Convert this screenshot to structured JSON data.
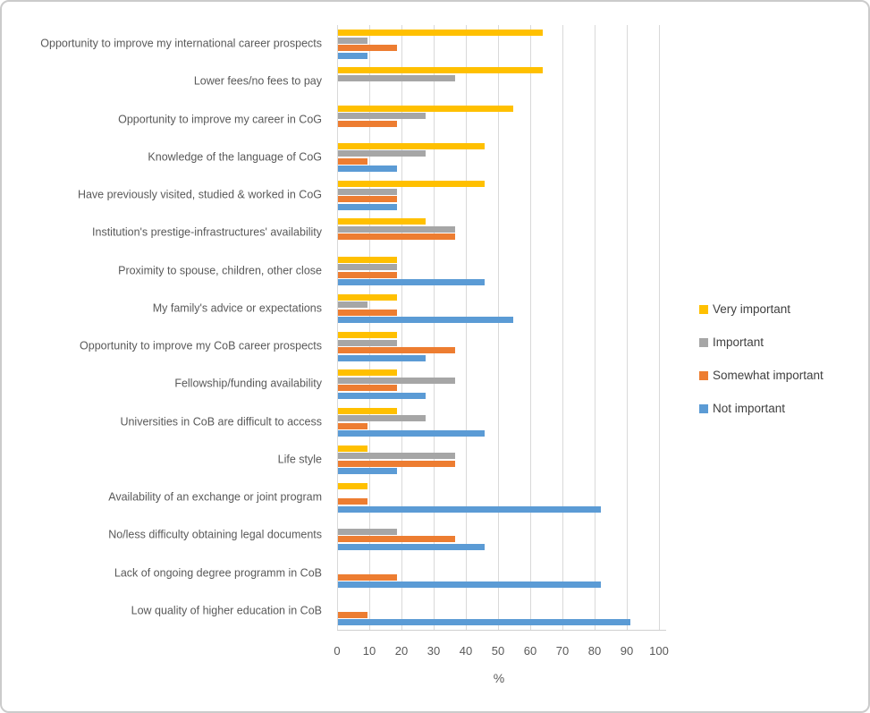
{
  "chart_data": {
    "type": "bar",
    "orientation": "horizontal",
    "title": "",
    "xlabel": "%",
    "ylabel": "",
    "xlim": [
      0,
      100
    ],
    "x_ticks": [
      0,
      10,
      20,
      30,
      40,
      50,
      60,
      70,
      80,
      90,
      100
    ],
    "grid": "vertical",
    "legend_position": "right",
    "categories": [
      "Opportunity to improve my international career prospects",
      "Lower fees/no fees to pay",
      "Opportunity to improve my career in CoG",
      "Knowledge of the language of CoG",
      "Have previously visited, studied & worked in CoG",
      "Institution's prestige-infrastructures' availability",
      "Proximity to spouse, children, other close",
      "My family's advice or expectations",
      "Opportunity to improve my CoB career prospects",
      "Fellowship/funding availability",
      "Universities in CoB are difficult to access",
      "Life style",
      "Availability of an exchange or joint program",
      "No/less difficulty obtaining legal documents",
      "Lack of ongoing degree programm in CoB",
      "Low quality of higher education in CoB"
    ],
    "series": [
      {
        "name": "Very important",
        "color": "#FFC000",
        "values": [
          63.6,
          63.6,
          54.5,
          45.5,
          45.5,
          27.3,
          18.2,
          18.2,
          18.2,
          18.2,
          18.2,
          9.1,
          9.1,
          0,
          0,
          0
        ]
      },
      {
        "name": "Important",
        "color": "#A6A6A6",
        "values": [
          9.1,
          36.4,
          27.3,
          27.3,
          18.2,
          36.4,
          18.2,
          9.1,
          18.2,
          36.4,
          27.3,
          36.4,
          0,
          18.2,
          0,
          0
        ]
      },
      {
        "name": "Somewhat important",
        "color": "#ED7D31",
        "values": [
          18.2,
          0,
          18.2,
          9.1,
          18.2,
          36.4,
          18.2,
          18.2,
          36.4,
          18.2,
          9.1,
          36.4,
          9.1,
          36.4,
          18.2,
          9.1
        ]
      },
      {
        "name": "Not important",
        "color": "#5B9BD5",
        "values": [
          9.1,
          0,
          0,
          18.2,
          18.2,
          0,
          45.5,
          54.5,
          27.3,
          27.3,
          45.5,
          18.2,
          81.8,
          45.5,
          81.8,
          90.9
        ]
      }
    ],
    "colors": {
      "gridline": "#d9d9d9",
      "axis_text": "#595959",
      "legend_text": "#404040"
    }
  }
}
